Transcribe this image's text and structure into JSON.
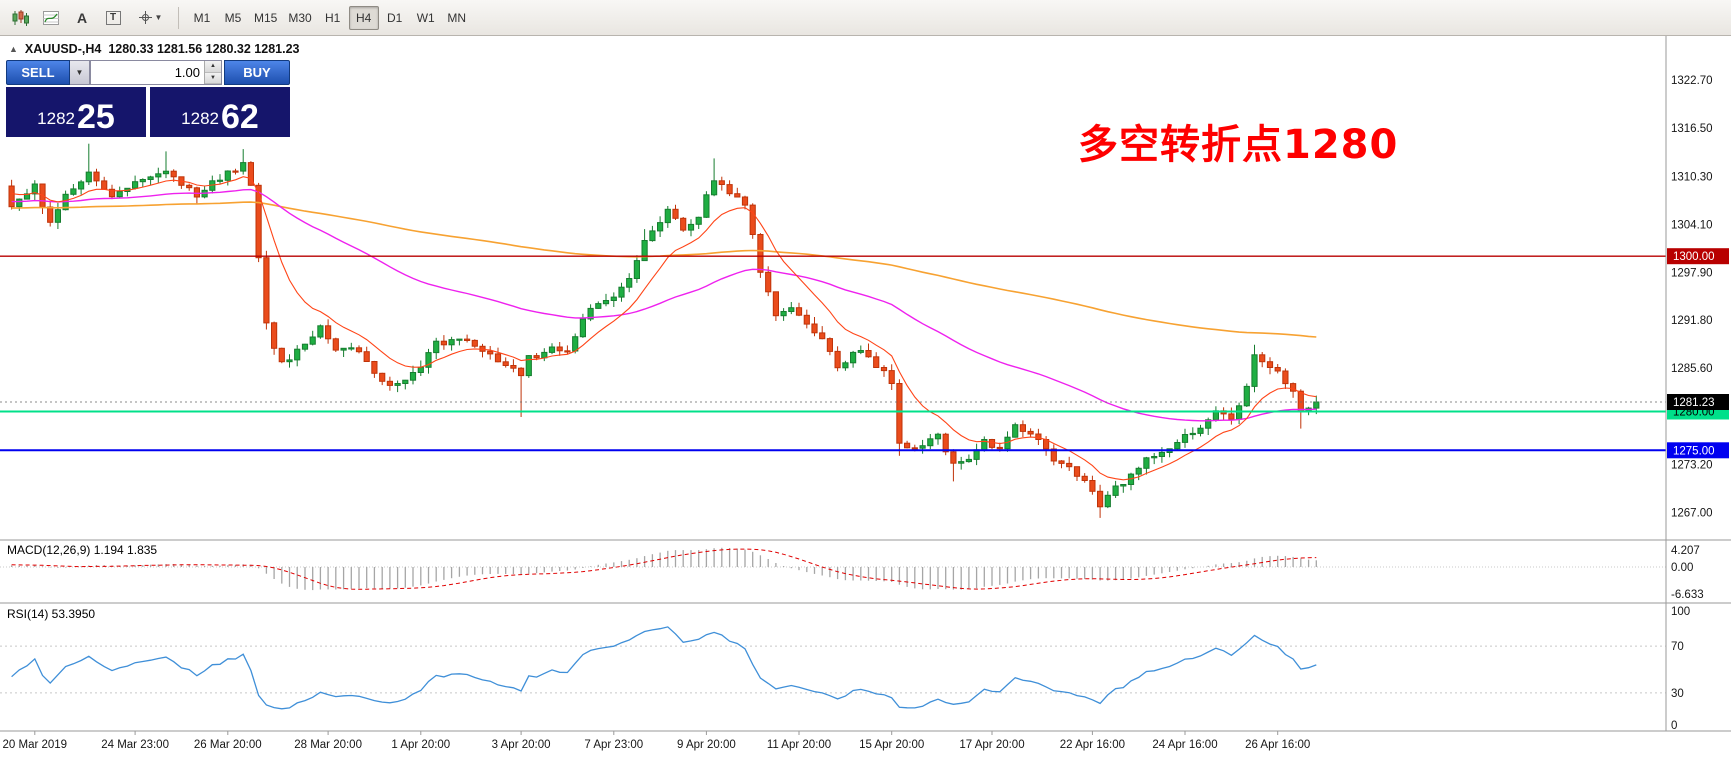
{
  "colors": {
    "up": "#167d2f",
    "up_fill": "#1fae43",
    "down": "#bf3309",
    "down_fill": "#ea4c1c",
    "ma_fast": "#ff4518",
    "ma_mid": "#ee22ee",
    "ma_slow": "#f7a232",
    "macd_hist": "#a6a6a6",
    "macd_signal": "#e00000",
    "rsi_line": "#3f8fd8",
    "annotation": "#fe0000"
  },
  "toolbar": {
    "timeframes": [
      "M1",
      "M5",
      "M15",
      "M30",
      "H1",
      "H4",
      "D1",
      "W1",
      "MN"
    ],
    "active_timeframe": "H4",
    "tools": {
      "a": "A",
      "t": "T",
      "caret": "▼"
    }
  },
  "chart": {
    "collapse_arrow": "▲",
    "symbol_title": "XAUUSD-,H4",
    "ohlc": "1280.33 1281.56 1280.32 1281.23"
  },
  "trade_panel": {
    "sell_label": "SELL",
    "buy_label": "BUY",
    "lot": "1.00",
    "dropdown_caret": "▼",
    "spinner_up": "▲",
    "spinner_down": "▼",
    "sell_big": "1282",
    "sell_pips": "25",
    "buy_big": "1282",
    "buy_pips": "62"
  },
  "annotation": {
    "text": "多空转折点1280"
  },
  "price_axis": {
    "labels": [
      {
        "text": "1322.70",
        "value": 1322.7
      },
      {
        "text": "1316.50",
        "value": 1316.5
      },
      {
        "text": "1310.30",
        "value": 1310.3
      },
      {
        "text": "1304.10",
        "value": 1304.1
      },
      {
        "text": "1297.90",
        "value": 1297.9
      },
      {
        "text": "1291.80",
        "value": 1291.8
      },
      {
        "text": "1285.60",
        "value": 1285.6
      },
      {
        "text": "1273.20",
        "value": 1273.2
      },
      {
        "text": "1267.00",
        "value": 1267.0
      }
    ],
    "badges": [
      {
        "text": "1300.00",
        "value": 1300.0,
        "bg": "#b80000",
        "fg": "#ffffff"
      },
      {
        "text": "1280.00",
        "value": 1280.0,
        "bg": "#00e08a",
        "fg": "#000000"
      },
      {
        "text": "1275.00",
        "value": 1275.0,
        "bg": "#0000f0",
        "fg": "#ffffff"
      },
      {
        "text": "1281.23",
        "value": 1281.23,
        "bg": "#000000",
        "fg": "#ffffff"
      }
    ]
  },
  "time_axis": [
    {
      "text": "20 Mar 2019",
      "i": 3
    },
    {
      "text": "24 Mar 23:00",
      "i": 16
    },
    {
      "text": "26 Mar 20:00",
      "i": 28
    },
    {
      "text": "28 Mar 20:00",
      "i": 41
    },
    {
      "text": "1 Apr 20:00",
      "i": 53
    },
    {
      "text": "3 Apr 20:00",
      "i": 66
    },
    {
      "text": "7 Apr 23:00",
      "i": 78
    },
    {
      "text": "9 Apr 20:00",
      "i": 90
    },
    {
      "text": "11 Apr 20:00",
      "i": 102
    },
    {
      "text": "15 Apr 20:00",
      "i": 114
    },
    {
      "text": "17 Apr 20:00",
      "i": 127
    },
    {
      "text": "22 Apr 16:00",
      "i": 140
    },
    {
      "text": "24 Apr 16:00",
      "i": 152
    },
    {
      "text": "26 Apr 16:00",
      "i": 164
    }
  ],
  "macd": {
    "label": "MACD(12,26,9) 1.194 1.835",
    "scale": [
      "4.207",
      "0.00",
      "-6.633"
    ]
  },
  "rsi": {
    "label": "RSI(14) 53.3950",
    "scale": [
      "100",
      "70",
      "30",
      "0"
    ]
  },
  "chart_data": {
    "type": "candlestick",
    "symbol": "XAUUSD-",
    "timeframe": "H4",
    "ohlc_display": {
      "open": "1280.33",
      "high": "1281.56",
      "low": "1280.32",
      "close": "1281.23"
    },
    "current_price": 1281.23,
    "ylim": [
      1263.5,
      1328.5
    ],
    "n_candles": 170,
    "noise": 0.85,
    "seed": 20190426,
    "ma_periods": {
      "fast": 10,
      "mid": 55,
      "slow": 200
    },
    "indicators": {
      "macd": [
        12,
        26,
        9
      ],
      "rsi": 14
    },
    "levels": [
      {
        "value": 1300.0,
        "color": "#b80000",
        "width": 1.4
      },
      {
        "value": 1280.0,
        "color": "#00e08a",
        "width": 2
      },
      {
        "value": 1275.0,
        "color": "#0000f0",
        "width": 2
      }
    ],
    "price_keypoints": [
      [
        0,
        1306
      ],
      [
        3,
        1309
      ],
      [
        5,
        1304
      ],
      [
        7,
        1308
      ],
      [
        10,
        1311
      ],
      [
        13,
        1308
      ],
      [
        17,
        1310
      ],
      [
        20,
        1311
      ],
      [
        24,
        1308
      ],
      [
        27,
        1310
      ],
      [
        30,
        1312
      ],
      [
        31,
        1309
      ],
      [
        33,
        1291
      ],
      [
        35,
        1286
      ],
      [
        37,
        1288
      ],
      [
        40,
        1291
      ],
      [
        42,
        1288
      ],
      [
        45,
        1288
      ],
      [
        47,
        1285
      ],
      [
        49,
        1283
      ],
      [
        51,
        1284
      ],
      [
        53,
        1286
      ],
      [
        55,
        1289
      ],
      [
        59,
        1289
      ],
      [
        62,
        1287
      ],
      [
        64,
        1286
      ],
      [
        66,
        1285
      ],
      [
        67,
        1287
      ],
      [
        70,
        1288
      ],
      [
        72,
        1288
      ],
      [
        74,
        1292
      ],
      [
        76,
        1294
      ],
      [
        78,
        1295
      ],
      [
        80,
        1297
      ],
      [
        82,
        1302
      ],
      [
        85,
        1306
      ],
      [
        87,
        1303
      ],
      [
        89,
        1305
      ],
      [
        91,
        1310
      ],
      [
        92,
        1309
      ],
      [
        95,
        1307
      ],
      [
        97,
        1298
      ],
      [
        99,
        1292
      ],
      [
        101,
        1293
      ],
      [
        103,
        1291
      ],
      [
        105,
        1289
      ],
      [
        107,
        1286
      ],
      [
        110,
        1288
      ],
      [
        112,
        1286
      ],
      [
        114,
        1284
      ],
      [
        115,
        1276
      ],
      [
        117,
        1275
      ],
      [
        120,
        1277
      ],
      [
        122,
        1273
      ],
      [
        124,
        1274
      ],
      [
        126,
        1276
      ],
      [
        128,
        1275
      ],
      [
        130,
        1278
      ],
      [
        132,
        1277
      ],
      [
        135,
        1274
      ],
      [
        137,
        1273
      ],
      [
        139,
        1271
      ],
      [
        141,
        1268
      ],
      [
        143,
        1270
      ],
      [
        145,
        1272
      ],
      [
        147,
        1274
      ],
      [
        150,
        1275
      ],
      [
        152,
        1277
      ],
      [
        154,
        1278
      ],
      [
        156,
        1280
      ],
      [
        158,
        1279
      ],
      [
        160,
        1283
      ],
      [
        161,
        1287
      ],
      [
        163,
        1286
      ],
      [
        164,
        1285
      ],
      [
        166,
        1283
      ],
      [
        167,
        1280
      ],
      [
        169,
        1281.23
      ]
    ],
    "wick_overrides": [
      {
        "i": 10,
        "high": 1314.5
      },
      {
        "i": 20,
        "high": 1313.5
      },
      {
        "i": 30,
        "high": 1313.8
      },
      {
        "i": 66,
        "low": 1279.3
      },
      {
        "i": 82,
        "high": 1303.5
      },
      {
        "i": 91,
        "high": 1312.6
      },
      {
        "i": 115,
        "low": 1274.3
      },
      {
        "i": 122,
        "low": 1271.0
      },
      {
        "i": 141,
        "low": 1266.3
      },
      {
        "i": 161,
        "high": 1288.6
      },
      {
        "i": 167,
        "low": 1277.8
      }
    ]
  }
}
